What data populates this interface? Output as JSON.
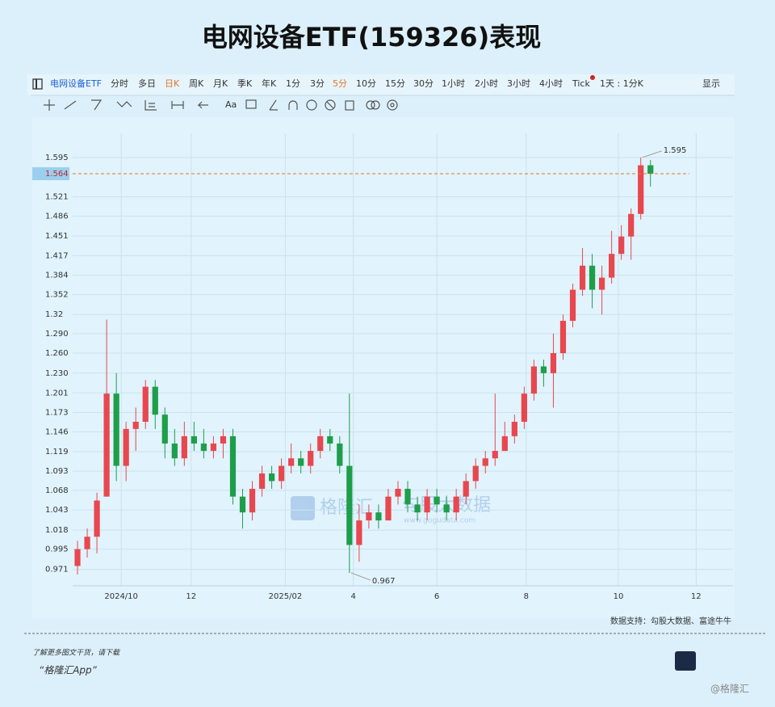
{
  "title": "电网设备ETF(159326)表现",
  "toolbar": {
    "items": [
      {
        "label": "电网设备ETF",
        "active": false,
        "accent": true
      },
      {
        "label": "分时",
        "active": false
      },
      {
        "label": "多日",
        "active": false
      },
      {
        "label": "日K",
        "active": true
      },
      {
        "label": "周K",
        "active": false
      },
      {
        "label": "月K",
        "active": false
      },
      {
        "label": "季K",
        "active": false
      },
      {
        "label": "年K",
        "active": false
      },
      {
        "label": "1分",
        "active": false
      },
      {
        "label": "3分",
        "active": false
      },
      {
        "label": "5分",
        "active": true
      },
      {
        "label": "10分",
        "active": false
      },
      {
        "label": "15分",
        "active": false
      },
      {
        "label": "30分",
        "active": false
      },
      {
        "label": "1小时",
        "active": false
      },
      {
        "label": "2小时",
        "active": false
      },
      {
        "label": "3小时",
        "active": false
      },
      {
        "label": "4小时",
        "active": false
      },
      {
        "label": "Tick",
        "active": false
      },
      {
        "label": "1天 : 1分K",
        "active": false
      }
    ],
    "display": "显示",
    "font_button": "Aa"
  },
  "chart_data": {
    "type": "candlestick",
    "log_scale": true,
    "grid": true,
    "up_color": "#e8474f",
    "down_color": "#1e9e4a",
    "open": [
      0.975,
      0.995,
      1.01,
      1.06,
      1.2,
      1.1,
      1.15,
      1.16,
      1.21,
      1.17,
      1.13,
      1.11,
      1.14,
      1.13,
      1.12,
      1.13,
      1.14,
      1.06,
      1.04,
      1.07,
      1.09,
      1.08,
      1.1,
      1.11,
      1.1,
      1.12,
      1.14,
      1.13,
      1.1,
      1.0,
      1.03,
      1.04,
      1.03,
      1.06,
      1.07,
      1.05,
      1.04,
      1.06,
      1.05,
      1.04,
      1.06,
      1.08,
      1.1,
      1.11,
      1.12,
      1.14,
      1.16,
      1.2,
      1.24,
      1.23,
      1.26,
      1.31,
      1.36,
      1.4,
      1.36,
      1.38,
      1.42,
      1.45,
      1.49,
      1.58
    ],
    "high": [
      1.005,
      1.02,
      1.065,
      1.312,
      1.23,
      1.16,
      1.18,
      1.22,
      1.22,
      1.18,
      1.15,
      1.16,
      1.16,
      1.15,
      1.14,
      1.15,
      1.15,
      1.07,
      1.08,
      1.1,
      1.1,
      1.11,
      1.13,
      1.12,
      1.13,
      1.15,
      1.15,
      1.14,
      1.2,
      1.05,
      1.05,
      1.05,
      1.07,
      1.08,
      1.08,
      1.06,
      1.07,
      1.07,
      1.06,
      1.07,
      1.09,
      1.11,
      1.12,
      1.2,
      1.16,
      1.17,
      1.21,
      1.25,
      1.25,
      1.29,
      1.32,
      1.37,
      1.43,
      1.42,
      1.4,
      1.46,
      1.47,
      1.5,
      1.595,
      1.59
    ],
    "low": [
      0.965,
      0.985,
      0.99,
      1.06,
      1.08,
      1.08,
      1.12,
      1.15,
      1.15,
      1.11,
      1.1,
      1.1,
      1.12,
      1.11,
      1.11,
      1.11,
      1.05,
      1.02,
      1.03,
      1.06,
      1.07,
      1.07,
      1.09,
      1.09,
      1.09,
      1.11,
      1.12,
      1.09,
      0.967,
      0.98,
      1.02,
      1.02,
      1.03,
      1.05,
      1.04,
      1.03,
      1.03,
      1.04,
      1.03,
      1.03,
      1.05,
      1.07,
      1.09,
      1.1,
      1.12,
      1.13,
      1.15,
      1.19,
      1.21,
      1.18,
      1.25,
      1.3,
      1.35,
      1.33,
      1.32,
      1.37,
      1.41,
      1.41,
      1.48,
      1.54
    ],
    "close": [
      0.995,
      1.01,
      1.055,
      1.2,
      1.1,
      1.15,
      1.16,
      1.21,
      1.17,
      1.13,
      1.11,
      1.14,
      1.13,
      1.12,
      1.13,
      1.14,
      1.06,
      1.04,
      1.07,
      1.09,
      1.08,
      1.1,
      1.11,
      1.1,
      1.12,
      1.14,
      1.13,
      1.1,
      1.0,
      1.03,
      1.04,
      1.03,
      1.06,
      1.07,
      1.05,
      1.04,
      1.06,
      1.05,
      1.04,
      1.06,
      1.08,
      1.1,
      1.11,
      1.12,
      1.14,
      1.16,
      1.2,
      1.24,
      1.23,
      1.26,
      1.31,
      1.36,
      1.4,
      1.36,
      1.38,
      1.42,
      1.45,
      1.49,
      1.58,
      1.564
    ],
    "xlim": [
      -0.5,
      67.5
    ],
    "xticks": [
      {
        "value": 4.5,
        "label": "2024/10"
      },
      {
        "value": 11.7,
        "label": "12"
      },
      {
        "value": 21.4,
        "label": "2025/02"
      },
      {
        "value": 28.4,
        "label": "4"
      },
      {
        "value": 37,
        "label": "6"
      },
      {
        "value": 46.2,
        "label": "8"
      },
      {
        "value": 55.7,
        "label": "10"
      },
      {
        "value": 63.7,
        "label": "12"
      }
    ],
    "ylim": [
      0.952,
      1.642
    ],
    "yticks": [
      1.595,
      1.521,
      1.486,
      1.451,
      1.417,
      1.384,
      1.352,
      1.32,
      {
        "value": 1.29,
        "label": "1.290"
      },
      {
        "value": 1.26,
        "label": "1.260"
      },
      {
        "value": 1.23,
        "label": "1.230"
      },
      1.201,
      1.173,
      1.146,
      1.119,
      1.093,
      1.068,
      1.043,
      1.018,
      0.995,
      0.971
    ],
    "last_price": 1.564,
    "last_price_color": "#e8742a",
    "high_marker": 1.595,
    "low_marker": 0.967,
    "source": "数据支持：勾股大数据、富途牛牛"
  },
  "watermark": {
    "brand": "格隆汇",
    "partner": "勾股大数据",
    "url": "www.gogudata.com"
  },
  "footer": {
    "prompt": "了解更多图文干货，请下载",
    "app": "“格隆汇App”",
    "handle": "@格隆汇"
  }
}
